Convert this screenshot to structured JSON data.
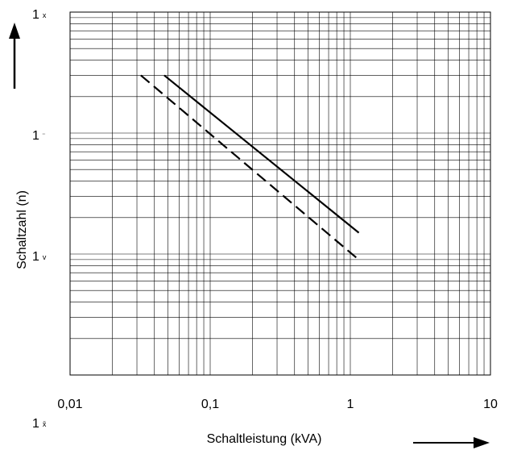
{
  "chart_data": {
    "type": "line",
    "xlabel": "Schaltleistung (kVA)",
    "ylabel": "Schaltzahl (n)",
    "x_scale": "log",
    "y_scale": "log",
    "xlim": [
      0.01,
      10
    ],
    "ylim": [
      100000,
      100000000
    ],
    "grid": true,
    "x_tick_labels": [
      "0,01",
      "0,1",
      "1",
      "10"
    ],
    "x_tick_values": [
      0.01,
      0.1,
      1,
      10
    ],
    "y_tick_labels": [
      {
        "base": "1",
        "exp": "x",
        "value": 100000000
      },
      {
        "base": "1",
        "exp": "¨",
        "value": 10000000
      },
      {
        "base": "1",
        "exp": "v",
        "value": 1000000
      },
      {
        "base": "1",
        "exp": "x̌",
        "value": 100000
      }
    ],
    "series": [
      {
        "style": "solid",
        "x": [
          0.047,
          1.15
        ],
        "y": [
          30000000,
          1500000
        ]
      },
      {
        "style": "dashed",
        "x": [
          0.032,
          1.12
        ],
        "y": [
          30000000,
          920000
        ]
      }
    ],
    "arrows": [
      "up",
      "right"
    ]
  }
}
